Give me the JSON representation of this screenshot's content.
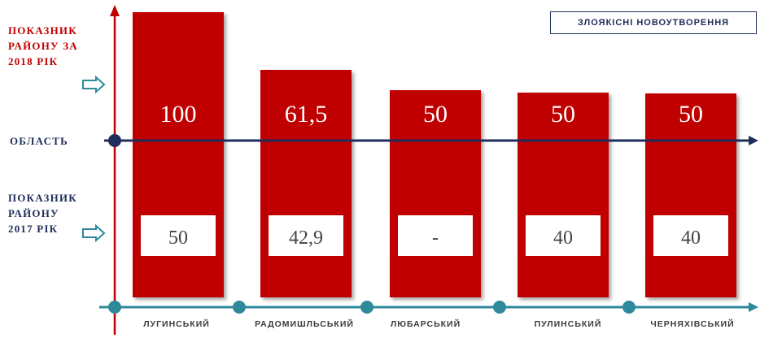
{
  "chart_data": {
    "type": "bar",
    "title": "ЗЛОЯКІСНІ НОВОУТВОРЕННЯ",
    "categories": [
      "ЛУГИНСЬКИЙ",
      "РАДОМИШЛЬСЬКИЙ",
      "ЛЮБАРСЬКИЙ",
      "ПУЛИНСЬКИЙ",
      "ЧЕРНЯХІВСЬКИЙ"
    ],
    "series": [
      {
        "name": "ПОКАЗНИК РАЙОНУ ЗА 2018 РІК",
        "values": [
          100,
          61.5,
          50,
          50,
          50
        ],
        "labels": [
          "100",
          "61,5",
          "50",
          "50",
          "50"
        ]
      },
      {
        "name": "ПОКАЗНИК РАЙОНУ ЗА 2017 РІК",
        "values": [
          50,
          42.9,
          null,
          40,
          40
        ],
        "labels": [
          "50",
          "42,9",
          "-",
          "40",
          "40"
        ]
      }
    ],
    "reference_line": {
      "name": "ОБЛАСТЬ"
    }
  },
  "labels": {
    "y2018": [
      "ПОКАЗНИК",
      "РАЙОНУ ЗА",
      "2018 РІК"
    ],
    "region": "ОБЛАСТЬ",
    "y2017": [
      "ПОКАЗНИК",
      "РАЙОНУ",
      "2017 РІК"
    ]
  },
  "colors": {
    "bar": "#c00000",
    "nav": "#1f2d5a",
    "teal": "#2e8a9a",
    "axis": "#c00000"
  }
}
